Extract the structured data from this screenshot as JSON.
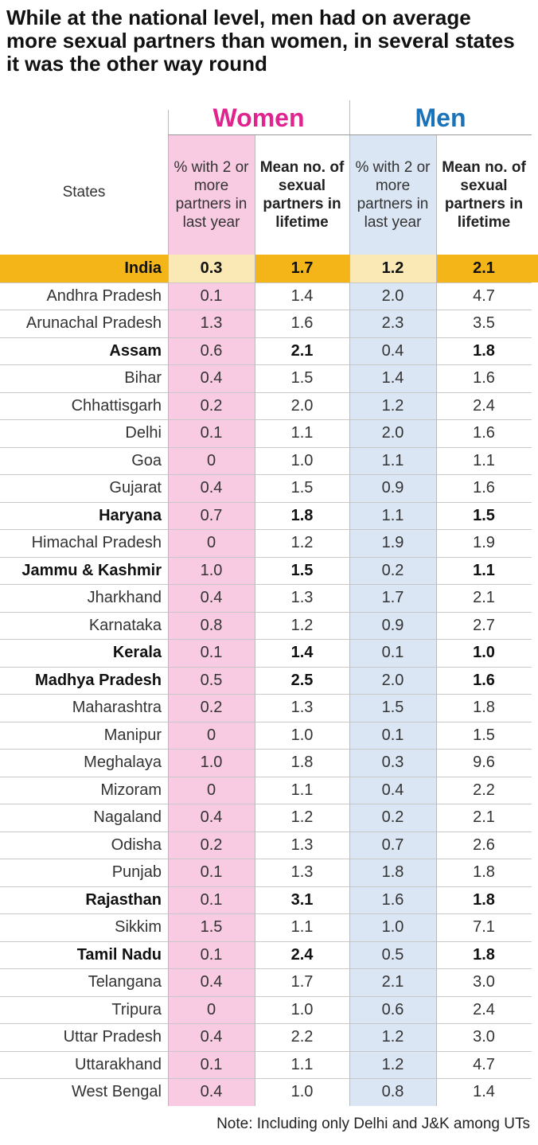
{
  "title": "While at the national level, men had on average more sexual partners than women, in several states it was the other way round",
  "colors": {
    "women": "#e0238f",
    "men": "#1a73b8",
    "women_bg": "#f9cbe3",
    "men_bg": "#dbe6f4",
    "highlight": "#f4b518",
    "highlight_light": "#fbe9b5"
  },
  "header": {
    "states": "States",
    "women": "Women",
    "men": "Men",
    "pct": "% with 2 or more partners in last year",
    "mean": "Mean no. of sexual partners in lifetime"
  },
  "note": "Note: Including only Delhi and J&K among UTs",
  "chart_data": {
    "type": "table",
    "columns": [
      "States",
      "Women: % with 2 or more partners in last year",
      "Women: Mean no. of sexual partners in lifetime",
      "Men: % with 2 or more partners in last year",
      "Men: Mean no. of sexual partners in lifetime"
    ],
    "rows": [
      {
        "state": "India",
        "w_pct": "0.3",
        "w_mean": "1.7",
        "m_pct": "1.2",
        "m_mean": "2.1",
        "bold": true,
        "highlight": true
      },
      {
        "state": "Andhra Pradesh",
        "w_pct": "0.1",
        "w_mean": "1.4",
        "m_pct": "2.0",
        "m_mean": "4.7",
        "bold": false
      },
      {
        "state": "Arunachal Pradesh",
        "w_pct": "1.3",
        "w_mean": "1.6",
        "m_pct": "2.3",
        "m_mean": "3.5",
        "bold": false
      },
      {
        "state": "Assam",
        "w_pct": "0.6",
        "w_mean": "2.1",
        "m_pct": "0.4",
        "m_mean": "1.8",
        "bold": true
      },
      {
        "state": "Bihar",
        "w_pct": "0.4",
        "w_mean": "1.5",
        "m_pct": "1.4",
        "m_mean": "1.6",
        "bold": false
      },
      {
        "state": "Chhattisgarh",
        "w_pct": "0.2",
        "w_mean": "2.0",
        "m_pct": "1.2",
        "m_mean": "2.4",
        "bold": false
      },
      {
        "state": "Delhi",
        "w_pct": "0.1",
        "w_mean": "1.1",
        "m_pct": "2.0",
        "m_mean": "1.6",
        "bold": false
      },
      {
        "state": "Goa",
        "w_pct": "0",
        "w_mean": "1.0",
        "m_pct": "1.1",
        "m_mean": "1.1",
        "bold": false
      },
      {
        "state": "Gujarat",
        "w_pct": "0.4",
        "w_mean": "1.5",
        "m_pct": "0.9",
        "m_mean": "1.6",
        "bold": false
      },
      {
        "state": "Haryana",
        "w_pct": "0.7",
        "w_mean": "1.8",
        "m_pct": "1.1",
        "m_mean": "1.5",
        "bold": true
      },
      {
        "state": "Himachal Pradesh",
        "w_pct": "0",
        "w_mean": "1.2",
        "m_pct": "1.9",
        "m_mean": "1.9",
        "bold": false
      },
      {
        "state": "Jammu & Kashmir",
        "w_pct": "1.0",
        "w_mean": "1.5",
        "m_pct": "0.2",
        "m_mean": "1.1",
        "bold": true
      },
      {
        "state": "Jharkhand",
        "w_pct": "0.4",
        "w_mean": "1.3",
        "m_pct": "1.7",
        "m_mean": "2.1",
        "bold": false
      },
      {
        "state": "Karnataka",
        "w_pct": "0.8",
        "w_mean": "1.2",
        "m_pct": "0.9",
        "m_mean": "2.7",
        "bold": false
      },
      {
        "state": "Kerala",
        "w_pct": "0.1",
        "w_mean": "1.4",
        "m_pct": "0.1",
        "m_mean": "1.0",
        "bold": true
      },
      {
        "state": "Madhya Pradesh",
        "w_pct": "0.5",
        "w_mean": "2.5",
        "m_pct": "2.0",
        "m_mean": "1.6",
        "bold": true
      },
      {
        "state": "Maharashtra",
        "w_pct": "0.2",
        "w_mean": "1.3",
        "m_pct": "1.5",
        "m_mean": "1.8",
        "bold": false
      },
      {
        "state": "Manipur",
        "w_pct": "0",
        "w_mean": "1.0",
        "m_pct": "0.1",
        "m_mean": "1.5",
        "bold": false
      },
      {
        "state": "Meghalaya",
        "w_pct": "1.0",
        "w_mean": "1.8",
        "m_pct": "0.3",
        "m_mean": "9.6",
        "bold": false
      },
      {
        "state": "Mizoram",
        "w_pct": "0",
        "w_mean": "1.1",
        "m_pct": "0.4",
        "m_mean": "2.2",
        "bold": false
      },
      {
        "state": "Nagaland",
        "w_pct": "0.4",
        "w_mean": "1.2",
        "m_pct": "0.2",
        "m_mean": "2.1",
        "bold": false
      },
      {
        "state": "Odisha",
        "w_pct": "0.2",
        "w_mean": "1.3",
        "m_pct": "0.7",
        "m_mean": "2.6",
        "bold": false
      },
      {
        "state": "Punjab",
        "w_pct": "0.1",
        "w_mean": "1.3",
        "m_pct": "1.8",
        "m_mean": "1.8",
        "bold": false
      },
      {
        "state": "Rajasthan",
        "w_pct": "0.1",
        "w_mean": "3.1",
        "m_pct": "1.6",
        "m_mean": "1.8",
        "bold": true
      },
      {
        "state": "Sikkim",
        "w_pct": "1.5",
        "w_mean": "1.1",
        "m_pct": "1.0",
        "m_mean": "7.1",
        "bold": false
      },
      {
        "state": "Tamil Nadu",
        "w_pct": "0.1",
        "w_mean": "2.4",
        "m_pct": "0.5",
        "m_mean": "1.8",
        "bold": true
      },
      {
        "state": "Telangana",
        "w_pct": "0.4",
        "w_mean": "1.7",
        "m_pct": "2.1",
        "m_mean": "3.0",
        "bold": false
      },
      {
        "state": "Tripura",
        "w_pct": "0",
        "w_mean": "1.0",
        "m_pct": "0.6",
        "m_mean": "2.4",
        "bold": false
      },
      {
        "state": "Uttar Pradesh",
        "w_pct": "0.4",
        "w_mean": "2.2",
        "m_pct": "1.2",
        "m_mean": "3.0",
        "bold": false
      },
      {
        "state": "Uttarakhand",
        "w_pct": "0.1",
        "w_mean": "1.1",
        "m_pct": "1.2",
        "m_mean": "4.7",
        "bold": false
      },
      {
        "state": "West Bengal",
        "w_pct": "0.4",
        "w_mean": "1.0",
        "m_pct": "0.8",
        "m_mean": "1.4",
        "bold": false
      }
    ]
  }
}
